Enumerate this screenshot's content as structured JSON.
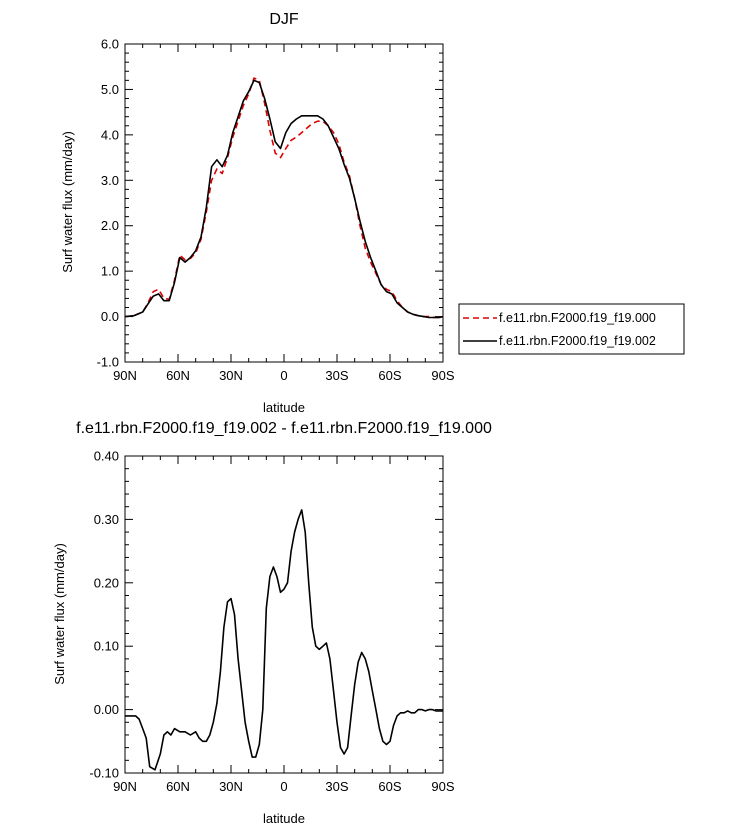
{
  "chart_data": [
    {
      "type": "line",
      "title": "DJF",
      "xlabel": "latitude",
      "ylabel": "Surf water flux (mm/day)",
      "xticks": [
        "90N",
        "60N",
        "30N",
        "0",
        "30S",
        "60S",
        "90S"
      ],
      "xtick_values": [
        90,
        60,
        30,
        0,
        -30,
        -60,
        -90
      ],
      "yticks": [
        "6.0",
        "5.0",
        "4.0",
        "3.0",
        "2.0",
        "1.0",
        "0.0",
        "-1.0"
      ],
      "ylim": [
        -1.0,
        6.0
      ],
      "xlim": [
        90,
        -90
      ],
      "legend_position": "right",
      "series": [
        {
          "name": "f.e11.rbn.F2000.f19_f19.000",
          "color": "#dd0000",
          "dash": "dashed",
          "x": [
            90,
            85,
            80,
            77,
            74,
            71,
            68,
            65,
            62,
            59,
            56,
            53,
            50,
            47,
            44,
            41,
            38,
            35,
            32,
            29,
            26,
            23,
            20,
            17,
            14,
            11,
            8,
            5,
            2,
            -1,
            -4,
            -7,
            -10,
            -13,
            -16,
            -19,
            -22,
            -25,
            -28,
            -31,
            -34,
            -37,
            -40,
            -43,
            -46,
            -49,
            -52,
            -55,
            -58,
            -61,
            -64,
            -67,
            -70,
            -73,
            -76,
            -79,
            -82,
            -85,
            -88,
            -90
          ],
          "y": [
            0.0,
            0.02,
            0.1,
            0.3,
            0.55,
            0.6,
            0.4,
            0.38,
            0.8,
            1.35,
            1.25,
            1.28,
            1.4,
            1.7,
            2.3,
            3.0,
            3.25,
            3.15,
            3.5,
            3.95,
            4.3,
            4.65,
            4.9,
            5.25,
            5.2,
            4.7,
            4.1,
            3.6,
            3.5,
            3.7,
            3.88,
            3.95,
            4.05,
            4.15,
            4.25,
            4.3,
            4.3,
            4.2,
            4.05,
            3.8,
            3.4,
            3.1,
            2.6,
            2.0,
            1.5,
            1.2,
            0.95,
            0.7,
            0.6,
            0.55,
            0.35,
            0.2,
            0.1,
            0.05,
            0.02,
            0.0,
            0.0,
            -0.02,
            -0.02,
            0.0
          ]
        },
        {
          "name": "f.e11.rbn.F2000.f19_f19.002",
          "color": "#000000",
          "dash": "solid",
          "x": [
            90,
            85,
            80,
            77,
            74,
            71,
            68,
            65,
            62,
            59,
            56,
            53,
            50,
            47,
            44,
            41,
            38,
            35,
            32,
            29,
            26,
            23,
            20,
            17,
            14,
            11,
            8,
            5,
            2,
            -1,
            -4,
            -7,
            -10,
            -13,
            -16,
            -19,
            -22,
            -25,
            -28,
            -31,
            -34,
            -37,
            -40,
            -43,
            -46,
            -49,
            -52,
            -55,
            -58,
            -61,
            -64,
            -67,
            -70,
            -73,
            -76,
            -79,
            -82,
            -85,
            -88,
            -90
          ],
          "y": [
            0.0,
            0.02,
            0.1,
            0.28,
            0.45,
            0.5,
            0.35,
            0.35,
            0.75,
            1.3,
            1.2,
            1.3,
            1.45,
            1.75,
            2.4,
            3.3,
            3.45,
            3.3,
            3.55,
            4.05,
            4.4,
            4.75,
            4.95,
            5.2,
            5.15,
            4.8,
            4.35,
            3.85,
            3.7,
            4.05,
            4.25,
            4.35,
            4.42,
            4.42,
            4.42,
            4.42,
            4.35,
            4.2,
            3.95,
            3.7,
            3.35,
            3.05,
            2.6,
            2.1,
            1.65,
            1.3,
            1.0,
            0.7,
            0.55,
            0.5,
            0.3,
            0.2,
            0.1,
            0.05,
            0.02,
            0.0,
            -0.02,
            -0.02,
            -0.02,
            0.0
          ]
        }
      ]
    },
    {
      "type": "line",
      "title": "f.e11.rbn.F2000.f19_f19.002 - f.e11.rbn.F2000.f19_f19.000",
      "xlabel": "latitude",
      "ylabel": "Surf water flux (mm/day)",
      "xticks": [
        "90N",
        "60N",
        "30N",
        "0",
        "30S",
        "60S",
        "90S"
      ],
      "xtick_values": [
        90,
        60,
        30,
        0,
        -30,
        -60,
        -90
      ],
      "yticks": [
        "0.40",
        "0.30",
        "0.20",
        "0.10",
        "0.00",
        "-0.10"
      ],
      "ylim": [
        -0.1,
        0.4
      ],
      "xlim": [
        90,
        -90
      ],
      "series": [
        {
          "color": "#000000",
          "dash": "solid",
          "x": [
            90,
            87,
            84,
            82,
            80,
            78,
            76,
            73,
            70,
            68,
            66,
            64,
            62,
            59,
            56,
            53,
            50,
            48,
            46,
            44,
            42,
            40,
            38,
            36,
            34,
            32,
            30,
            28,
            26,
            24,
            22,
            20,
            18,
            16,
            14,
            12,
            10,
            8,
            6,
            4,
            2,
            0,
            -2,
            -4,
            -6,
            -8,
            -10,
            -12,
            -14,
            -16,
            -18,
            -20,
            -22,
            -24,
            -26,
            -28,
            -30,
            -32,
            -34,
            -36,
            -38,
            -40,
            -42,
            -44,
            -46,
            -48,
            -50,
            -52,
            -54,
            -56,
            -58,
            -60,
            -62,
            -64,
            -66,
            -68,
            -70,
            -72,
            -74,
            -76,
            -78,
            -80,
            -82,
            -84,
            -86,
            -88,
            -90
          ],
          "y": [
            -0.01,
            -0.01,
            -0.01,
            -0.015,
            -0.03,
            -0.045,
            -0.09,
            -0.095,
            -0.07,
            -0.04,
            -0.035,
            -0.04,
            -0.03,
            -0.035,
            -0.035,
            -0.04,
            -0.035,
            -0.045,
            -0.05,
            -0.05,
            -0.04,
            -0.02,
            0.01,
            0.06,
            0.13,
            0.17,
            0.175,
            0.15,
            0.08,
            0.03,
            -0.02,
            -0.05,
            -0.075,
            -0.075,
            -0.055,
            0.0,
            0.16,
            0.21,
            0.225,
            0.21,
            0.185,
            0.19,
            0.2,
            0.25,
            0.28,
            0.3,
            0.315,
            0.28,
            0.2,
            0.13,
            0.1,
            0.095,
            0.1,
            0.105,
            0.08,
            0.03,
            -0.02,
            -0.06,
            -0.07,
            -0.06,
            -0.01,
            0.04,
            0.075,
            0.09,
            0.08,
            0.06,
            0.03,
            0.0,
            -0.03,
            -0.05,
            -0.055,
            -0.05,
            -0.025,
            -0.01,
            -0.005,
            -0.005,
            -0.002,
            -0.005,
            -0.005,
            0.0,
            0.0,
            -0.002,
            0.0,
            0.0,
            -0.002,
            -0.002,
            -0.002
          ]
        }
      ]
    }
  ]
}
